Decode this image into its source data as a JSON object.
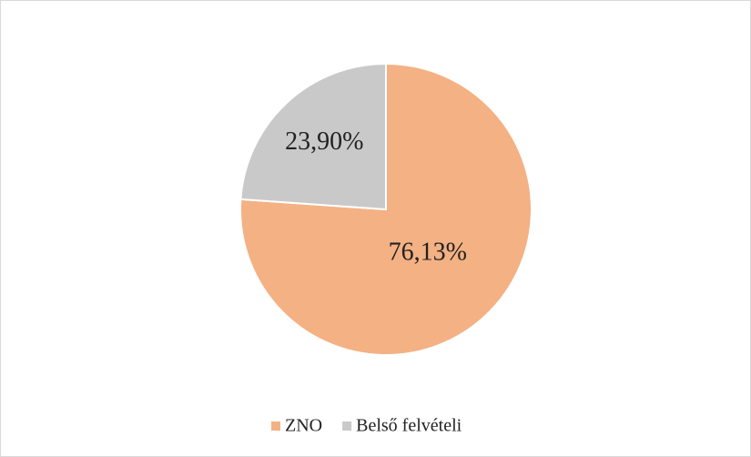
{
  "chart_data": {
    "type": "pie",
    "categories": [
      "ZNO",
      "Belső felvételi"
    ],
    "values": [
      76.13,
      23.9
    ],
    "value_labels": [
      "76,13%",
      "23,90%"
    ],
    "colors": [
      "#f4b183",
      "#c9c9c9"
    ],
    "legend": "bottom"
  }
}
